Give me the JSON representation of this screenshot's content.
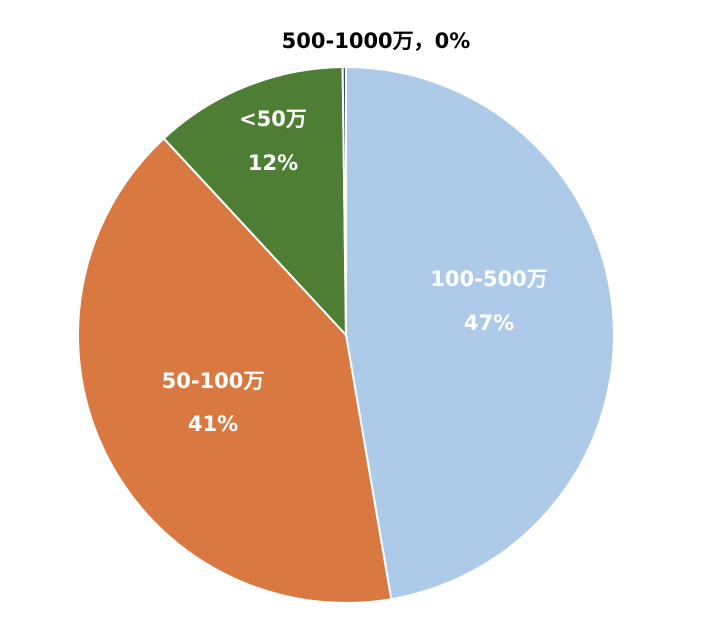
{
  "chart_data": {
    "type": "pie",
    "categories": [
      "100-500万",
      "50-100万",
      "<50万",
      "500-1000万"
    ],
    "values": [
      47.3,
      40.8,
      11.7,
      0.2
    ],
    "percent_labels": [
      "47%",
      "41%",
      "12%",
      "0%"
    ],
    "outside_label": "500-1000万，0%",
    "colors": [
      "#aecae9",
      "#d97941",
      "#4e7e34",
      "#2f4f7f"
    ],
    "title": "",
    "legend": "none"
  }
}
